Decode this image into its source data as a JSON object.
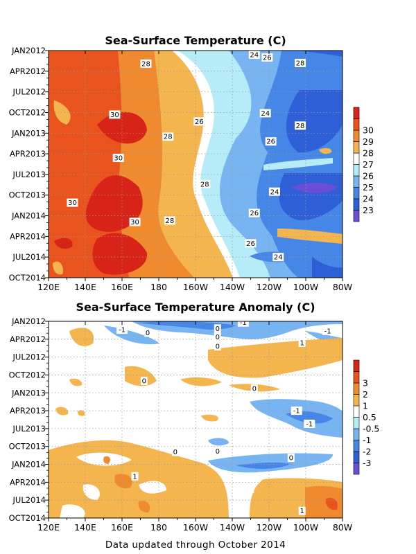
{
  "footer": "Data updated through October 2014",
  "chart_data": [
    {
      "type": "heatmap",
      "title": "Sea-Surface Temperature (C)",
      "x_tick_labels": [
        "120E",
        "140E",
        "160E",
        "180",
        "160W",
        "140W",
        "120W",
        "100W",
        "80W"
      ],
      "x_range_deg_east": [
        120,
        280
      ],
      "y_tick_labels": [
        "JAN2012",
        "APR2012",
        "JUL2012",
        "OCT2012",
        "JAN2013",
        "APR2013",
        "JUL2013",
        "OCT2013",
        "JAN2014",
        "APR2014",
        "JUL2014",
        "OCT2014"
      ],
      "y_range": [
        "JAN2012",
        "OCT2014"
      ],
      "y_direction": "time increases downward",
      "grid": "dotted",
      "colorbar": {
        "levels": [
          "23",
          "24",
          "25",
          "26",
          "27",
          "28",
          "29",
          "30"
        ],
        "colors": [
          "#6a4fd6",
          "#2e5fd7",
          "#4686e6",
          "#78b4f2",
          "#b6ecf8",
          "#ffffff",
          "#f4b44e",
          "#ef8a2e",
          "#e9531e",
          "#d82418"
        ]
      },
      "contour_labels": [
        {
          "text": "24",
          "lon": 232,
          "t": 0.6
        },
        {
          "text": "26",
          "lon": 239,
          "t": 1.0
        },
        {
          "text": "28",
          "lon": 257,
          "t": 1.8
        },
        {
          "text": "28",
          "lon": 173,
          "t": 1.9
        },
        {
          "text": "30",
          "lon": 156,
          "t": 9.3
        },
        {
          "text": "24",
          "lon": 238,
          "t": 9.1
        },
        {
          "text": "26",
          "lon": 202,
          "t": 10.3
        },
        {
          "text": "28",
          "lon": 257,
          "t": 10.9
        },
        {
          "text": "28",
          "lon": 185,
          "t": 12.5
        },
        {
          "text": "26",
          "lon": 241,
          "t": 13.2
        },
        {
          "text": "30",
          "lon": 158,
          "t": 15.6
        },
        {
          "text": "28",
          "lon": 205,
          "t": 19.4
        },
        {
          "text": "24",
          "lon": 243,
          "t": 20.5
        },
        {
          "text": "30",
          "lon": 133,
          "t": 22.1
        },
        {
          "text": "26",
          "lon": 232,
          "t": 23.6
        },
        {
          "text": "30",
          "lon": 167,
          "t": 24.9
        },
        {
          "text": "28",
          "lon": 186,
          "t": 24.7
        },
        {
          "text": "26",
          "lon": 230,
          "t": 28.0
        },
        {
          "text": "24",
          "lon": 245,
          "t": 30.0
        }
      ]
    },
    {
      "type": "heatmap",
      "title": "Sea-Surface Temperature Anomaly (C)",
      "x_tick_labels": [
        "120E",
        "140E",
        "160E",
        "180",
        "160W",
        "140W",
        "120W",
        "100W",
        "80W"
      ],
      "x_range_deg_east": [
        120,
        280
      ],
      "y_tick_labels": [
        "JAN2012",
        "APR2012",
        "JUL2012",
        "OCT2012",
        "JAN2013",
        "APR2013",
        "JUL2013",
        "OCT2013",
        "JAN2014",
        "APR2014",
        "JUL2014",
        "OCT2014"
      ],
      "y_range": [
        "JAN2012",
        "OCT2014"
      ],
      "y_direction": "time increases downward",
      "grid": "dotted",
      "colorbar": {
        "levels": [
          "-3",
          "-2",
          "-1",
          "-0.5",
          "0.5",
          "1",
          "2",
          "3"
        ],
        "colors": [
          "#6a4fd6",
          "#2e5fd7",
          "#4686e6",
          "#78b4f2",
          "#b6ecf8",
          "#ffffff",
          "#f4b44e",
          "#ef8a2e",
          "#e9531e",
          "#d82418"
        ]
      },
      "contour_labels": [
        {
          "text": "-1",
          "lon": 226,
          "t": 0.2
        },
        {
          "text": "0",
          "lon": 212,
          "t": 1.2
        },
        {
          "text": "-1",
          "lon": 160,
          "t": 1.4
        },
        {
          "text": "-1",
          "lon": 272,
          "t": 1.6
        },
        {
          "text": "0",
          "lon": 174,
          "t": 1.9
        },
        {
          "text": "0",
          "lon": 212,
          "t": 2.6
        },
        {
          "text": "1",
          "lon": 258,
          "t": 3.6
        },
        {
          "text": "0",
          "lon": 212,
          "t": 4.2
        },
        {
          "text": "0",
          "lon": 172,
          "t": 10.0
        },
        {
          "text": "0",
          "lon": 232,
          "t": 11.3
        },
        {
          "text": "-1",
          "lon": 255,
          "t": 15.0
        },
        {
          "text": "-1",
          "lon": 262,
          "t": 17.2
        },
        {
          "text": "0",
          "lon": 189,
          "t": 21.9
        },
        {
          "text": "0",
          "lon": 212,
          "t": 21.8
        },
        {
          "text": "0",
          "lon": 252,
          "t": 22.9
        },
        {
          "text": "1",
          "lon": 167,
          "t": 26.0
        },
        {
          "text": "1",
          "lon": 258,
          "t": 31.8
        }
      ]
    }
  ]
}
